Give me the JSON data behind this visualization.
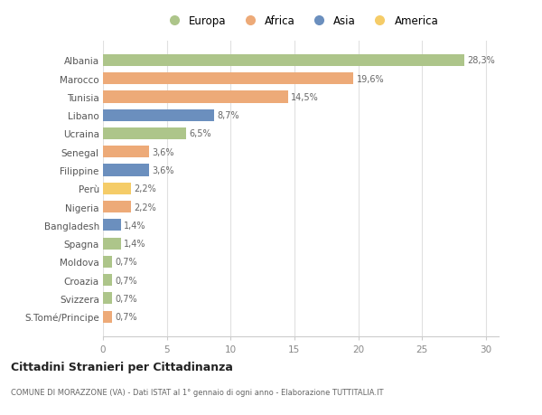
{
  "countries": [
    "Albania",
    "Marocco",
    "Tunisia",
    "Libano",
    "Ucraina",
    "Senegal",
    "Filippine",
    "Perù",
    "Nigeria",
    "Bangladesh",
    "Spagna",
    "Moldova",
    "Croazia",
    "Svizzera",
    "S.Tomé/Principe"
  ],
  "values": [
    28.3,
    19.6,
    14.5,
    8.7,
    6.5,
    3.6,
    3.6,
    2.2,
    2.2,
    1.4,
    1.4,
    0.7,
    0.7,
    0.7,
    0.7
  ],
  "labels": [
    "28,3%",
    "19,6%",
    "14,5%",
    "8,7%",
    "6,5%",
    "3,6%",
    "3,6%",
    "2,2%",
    "2,2%",
    "1,4%",
    "1,4%",
    "0,7%",
    "0,7%",
    "0,7%",
    "0,7%"
  ],
  "continents": [
    "Europa",
    "Africa",
    "Africa",
    "Asia",
    "Europa",
    "Africa",
    "Asia",
    "America",
    "Africa",
    "Asia",
    "Europa",
    "Europa",
    "Europa",
    "Europa",
    "Africa"
  ],
  "colors": {
    "Europa": "#adc58a",
    "Africa": "#edaa78",
    "Asia": "#6b8fbe",
    "America": "#f5cc68"
  },
  "legend_labels": [
    "Europa",
    "Africa",
    "Asia",
    "America"
  ],
  "legend_colors": [
    "#adc58a",
    "#edaa78",
    "#6b8fbe",
    "#f5cc68"
  ],
  "xlim": [
    0,
    31
  ],
  "xticks": [
    0,
    5,
    10,
    15,
    20,
    25,
    30
  ],
  "title": "Cittadini Stranieri per Cittadinanza",
  "subtitle": "COMUNE DI MORAZZONE (VA) - Dati ISTAT al 1° gennaio di ogni anno - Elaborazione TUTTITALIA.IT",
  "bg_color": "#ffffff",
  "grid_color": "#e0e0e0"
}
